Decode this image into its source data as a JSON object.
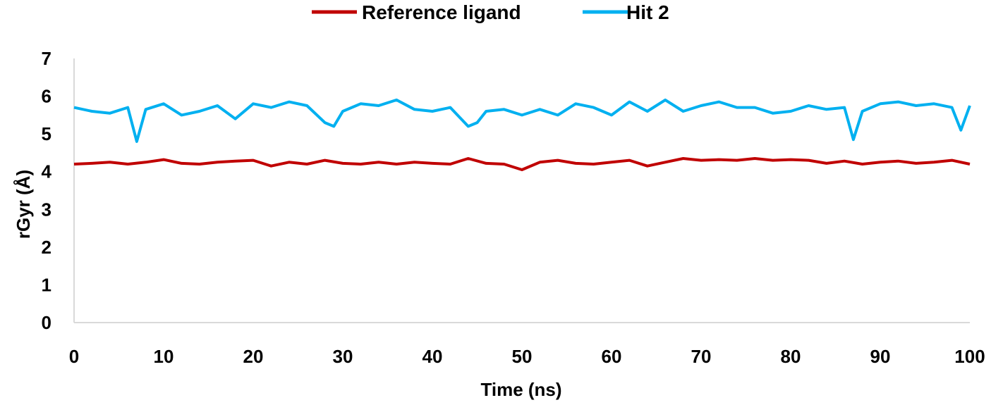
{
  "chart_data": {
    "type": "line",
    "title": "",
    "xlabel": "Time (ns)",
    "ylabel": "rGyr (Å)",
    "xlim": [
      0,
      100
    ],
    "ylim": [
      0,
      7
    ],
    "xticks": [
      0,
      10,
      20,
      30,
      40,
      50,
      60,
      70,
      80,
      90,
      100
    ],
    "yticks": [
      0,
      1,
      2,
      3,
      4,
      5,
      6,
      7
    ],
    "grid": false,
    "legend_position": "top-center",
    "series": [
      {
        "name": "Reference ligand",
        "color": "#c00000",
        "x": [
          0,
          2,
          4,
          6,
          8,
          10,
          12,
          14,
          16,
          18,
          20,
          22,
          24,
          26,
          28,
          30,
          32,
          34,
          36,
          38,
          40,
          42,
          44,
          46,
          48,
          50,
          52,
          54,
          56,
          58,
          60,
          62,
          64,
          66,
          68,
          70,
          72,
          74,
          76,
          78,
          80,
          82,
          84,
          86,
          88,
          90,
          92,
          94,
          96,
          98,
          100
        ],
        "y": [
          4.2,
          4.22,
          4.25,
          4.2,
          4.25,
          4.32,
          4.22,
          4.2,
          4.25,
          4.28,
          4.3,
          4.15,
          4.25,
          4.2,
          4.3,
          4.22,
          4.2,
          4.25,
          4.2,
          4.25,
          4.22,
          4.2,
          4.35,
          4.22,
          4.2,
          4.05,
          4.25,
          4.3,
          4.22,
          4.2,
          4.25,
          4.3,
          4.15,
          4.25,
          4.35,
          4.3,
          4.32,
          4.3,
          4.35,
          4.3,
          4.32,
          4.3,
          4.22,
          4.28,
          4.2,
          4.25,
          4.28,
          4.22,
          4.25,
          4.3,
          4.2
        ]
      },
      {
        "name": "Hit 2",
        "color": "#00b0f0",
        "x": [
          0,
          2,
          4,
          6,
          7,
          8,
          10,
          12,
          14,
          16,
          18,
          20,
          22,
          24,
          26,
          28,
          29,
          30,
          32,
          34,
          36,
          38,
          40,
          42,
          44,
          45,
          46,
          48,
          50,
          52,
          54,
          56,
          58,
          60,
          62,
          64,
          66,
          68,
          70,
          72,
          74,
          76,
          78,
          80,
          82,
          84,
          86,
          87,
          88,
          90,
          92,
          94,
          96,
          98,
          99,
          100
        ],
        "y": [
          5.7,
          5.6,
          5.55,
          5.7,
          4.8,
          5.65,
          5.8,
          5.5,
          5.6,
          5.75,
          5.4,
          5.8,
          5.7,
          5.85,
          5.75,
          5.3,
          5.2,
          5.6,
          5.8,
          5.75,
          5.9,
          5.65,
          5.6,
          5.7,
          5.2,
          5.3,
          5.6,
          5.65,
          5.5,
          5.65,
          5.5,
          5.8,
          5.7,
          5.5,
          5.85,
          5.6,
          5.9,
          5.6,
          5.75,
          5.85,
          5.7,
          5.7,
          5.55,
          5.6,
          5.75,
          5.65,
          5.7,
          4.85,
          5.6,
          5.8,
          5.85,
          5.75,
          5.8,
          5.7,
          5.1,
          5.75
        ]
      }
    ]
  }
}
